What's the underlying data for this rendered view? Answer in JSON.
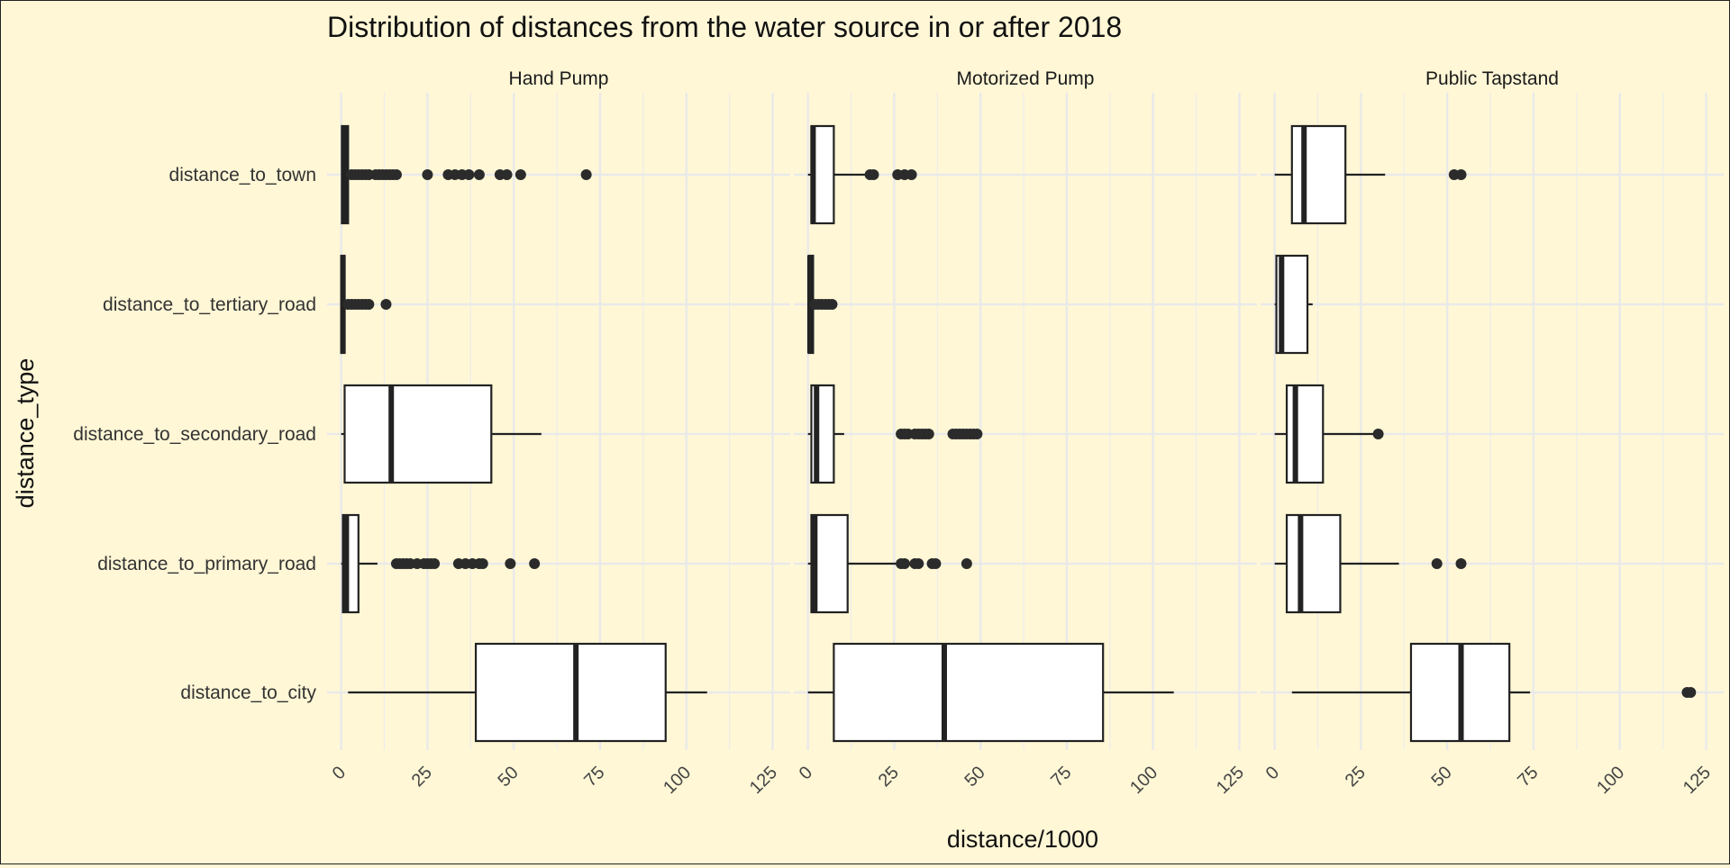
{
  "chart_data": {
    "type": "boxplot",
    "title": "Distribution of distances from the water source in or after 2018",
    "xlabel": "distance/1000",
    "ylabel": "distance_type",
    "xlim": [
      -2,
      128
    ],
    "x_ticks": [
      "0",
      "25",
      "50",
      "75",
      "100",
      "125"
    ],
    "x_tick_values": [
      0,
      25,
      50,
      75,
      100,
      125
    ],
    "grid": true,
    "legend": "none",
    "categories": [
      "distance_to_town",
      "distance_to_tertiary_road",
      "distance_to_secondary_road",
      "distance_to_primary_road",
      "distance_to_city"
    ],
    "panels": [
      {
        "name": "Hand Pump",
        "boxes": [
          {
            "category": "distance_to_town",
            "whisker_low": 0,
            "q1": 0.2,
            "median": 1,
            "q3": 2,
            "whisker_high": 2,
            "outliers": [
              3,
              4,
              5,
              6,
              7,
              8,
              10,
              11,
              12,
              13,
              14,
              15,
              16,
              25,
              31,
              33,
              35,
              37,
              40,
              46,
              48,
              52,
              71
            ]
          },
          {
            "category": "distance_to_tertiary_road",
            "whisker_low": 0,
            "q1": 0,
            "median": 0.5,
            "q3": 1,
            "whisker_high": 1,
            "outliers": [
              2,
              3,
              4,
              5,
              6,
              7,
              8,
              13
            ]
          },
          {
            "category": "distance_to_secondary_road",
            "whisker_low": 0,
            "q1": 1,
            "median": 14.5,
            "q3": 43.5,
            "whisker_high": 58,
            "outliers": []
          },
          {
            "category": "distance_to_primary_road",
            "whisker_low": 0,
            "q1": 0.5,
            "median": 1.5,
            "q3": 5,
            "whisker_high": 10.5,
            "outliers": [
              16,
              17,
              18,
              19,
              20,
              22,
              24,
              25,
              26,
              27,
              34,
              36,
              38,
              40,
              41,
              49,
              56
            ]
          },
          {
            "category": "distance_to_city",
            "whisker_low": 2,
            "q1": 39,
            "median": 68,
            "q3": 94,
            "whisker_high": 106,
            "outliers": []
          }
        ]
      },
      {
        "name": "Motorized Pump",
        "boxes": [
          {
            "category": "distance_to_town",
            "whisker_low": 0,
            "q1": 1,
            "median": 1.5,
            "q3": 7.5,
            "whisker_high": 18,
            "outliers": [
              18,
              19,
              26,
              28,
              30
            ]
          },
          {
            "category": "distance_to_tertiary_road",
            "whisker_low": 0,
            "q1": 0.2,
            "median": 0.6,
            "q3": 1.5,
            "whisker_high": 1.5,
            "outliers": [
              2,
              3,
              4,
              5,
              6,
              7
            ]
          },
          {
            "category": "distance_to_secondary_road",
            "whisker_low": 0,
            "q1": 1,
            "median": 2.5,
            "q3": 7.5,
            "whisker_high": 10.5,
            "outliers": [
              27,
              28,
              29,
              31,
              32,
              33,
              34,
              35,
              42,
              43,
              44,
              45,
              46,
              47,
              48,
              49
            ]
          },
          {
            "category": "distance_to_primary_road",
            "whisker_low": 0,
            "q1": 1,
            "median": 2,
            "q3": 11.5,
            "whisker_high": 26,
            "outliers": [
              27,
              28,
              31,
              32,
              36,
              37,
              46
            ]
          },
          {
            "category": "distance_to_city",
            "whisker_low": 0,
            "q1": 7.5,
            "median": 39.5,
            "q3": 85.5,
            "whisker_high": 106,
            "outliers": []
          }
        ]
      },
      {
        "name": "Public Tapstand",
        "boxes": [
          {
            "category": "distance_to_town",
            "whisker_low": 0,
            "q1": 5,
            "median": 8.5,
            "q3": 20.5,
            "whisker_high": 32,
            "outliers": [
              52,
              54
            ]
          },
          {
            "category": "distance_to_tertiary_road",
            "whisker_low": 0,
            "q1": 0.5,
            "median": 2,
            "q3": 9.5,
            "whisker_high": 11,
            "outliers": []
          },
          {
            "category": "distance_to_secondary_road",
            "whisker_low": 0,
            "q1": 3.5,
            "median": 6,
            "q3": 14,
            "whisker_high": 30,
            "outliers": [
              30
            ]
          },
          {
            "category": "distance_to_primary_road",
            "whisker_low": 0,
            "q1": 3.5,
            "median": 7.5,
            "q3": 19,
            "whisker_high": 36,
            "outliers": [
              47,
              54
            ]
          },
          {
            "category": "distance_to_city",
            "whisker_low": 5,
            "q1": 39.5,
            "median": 54,
            "q3": 68,
            "whisker_high": 74,
            "outliers": [
              119.5,
              120.5
            ]
          }
        ]
      }
    ]
  }
}
